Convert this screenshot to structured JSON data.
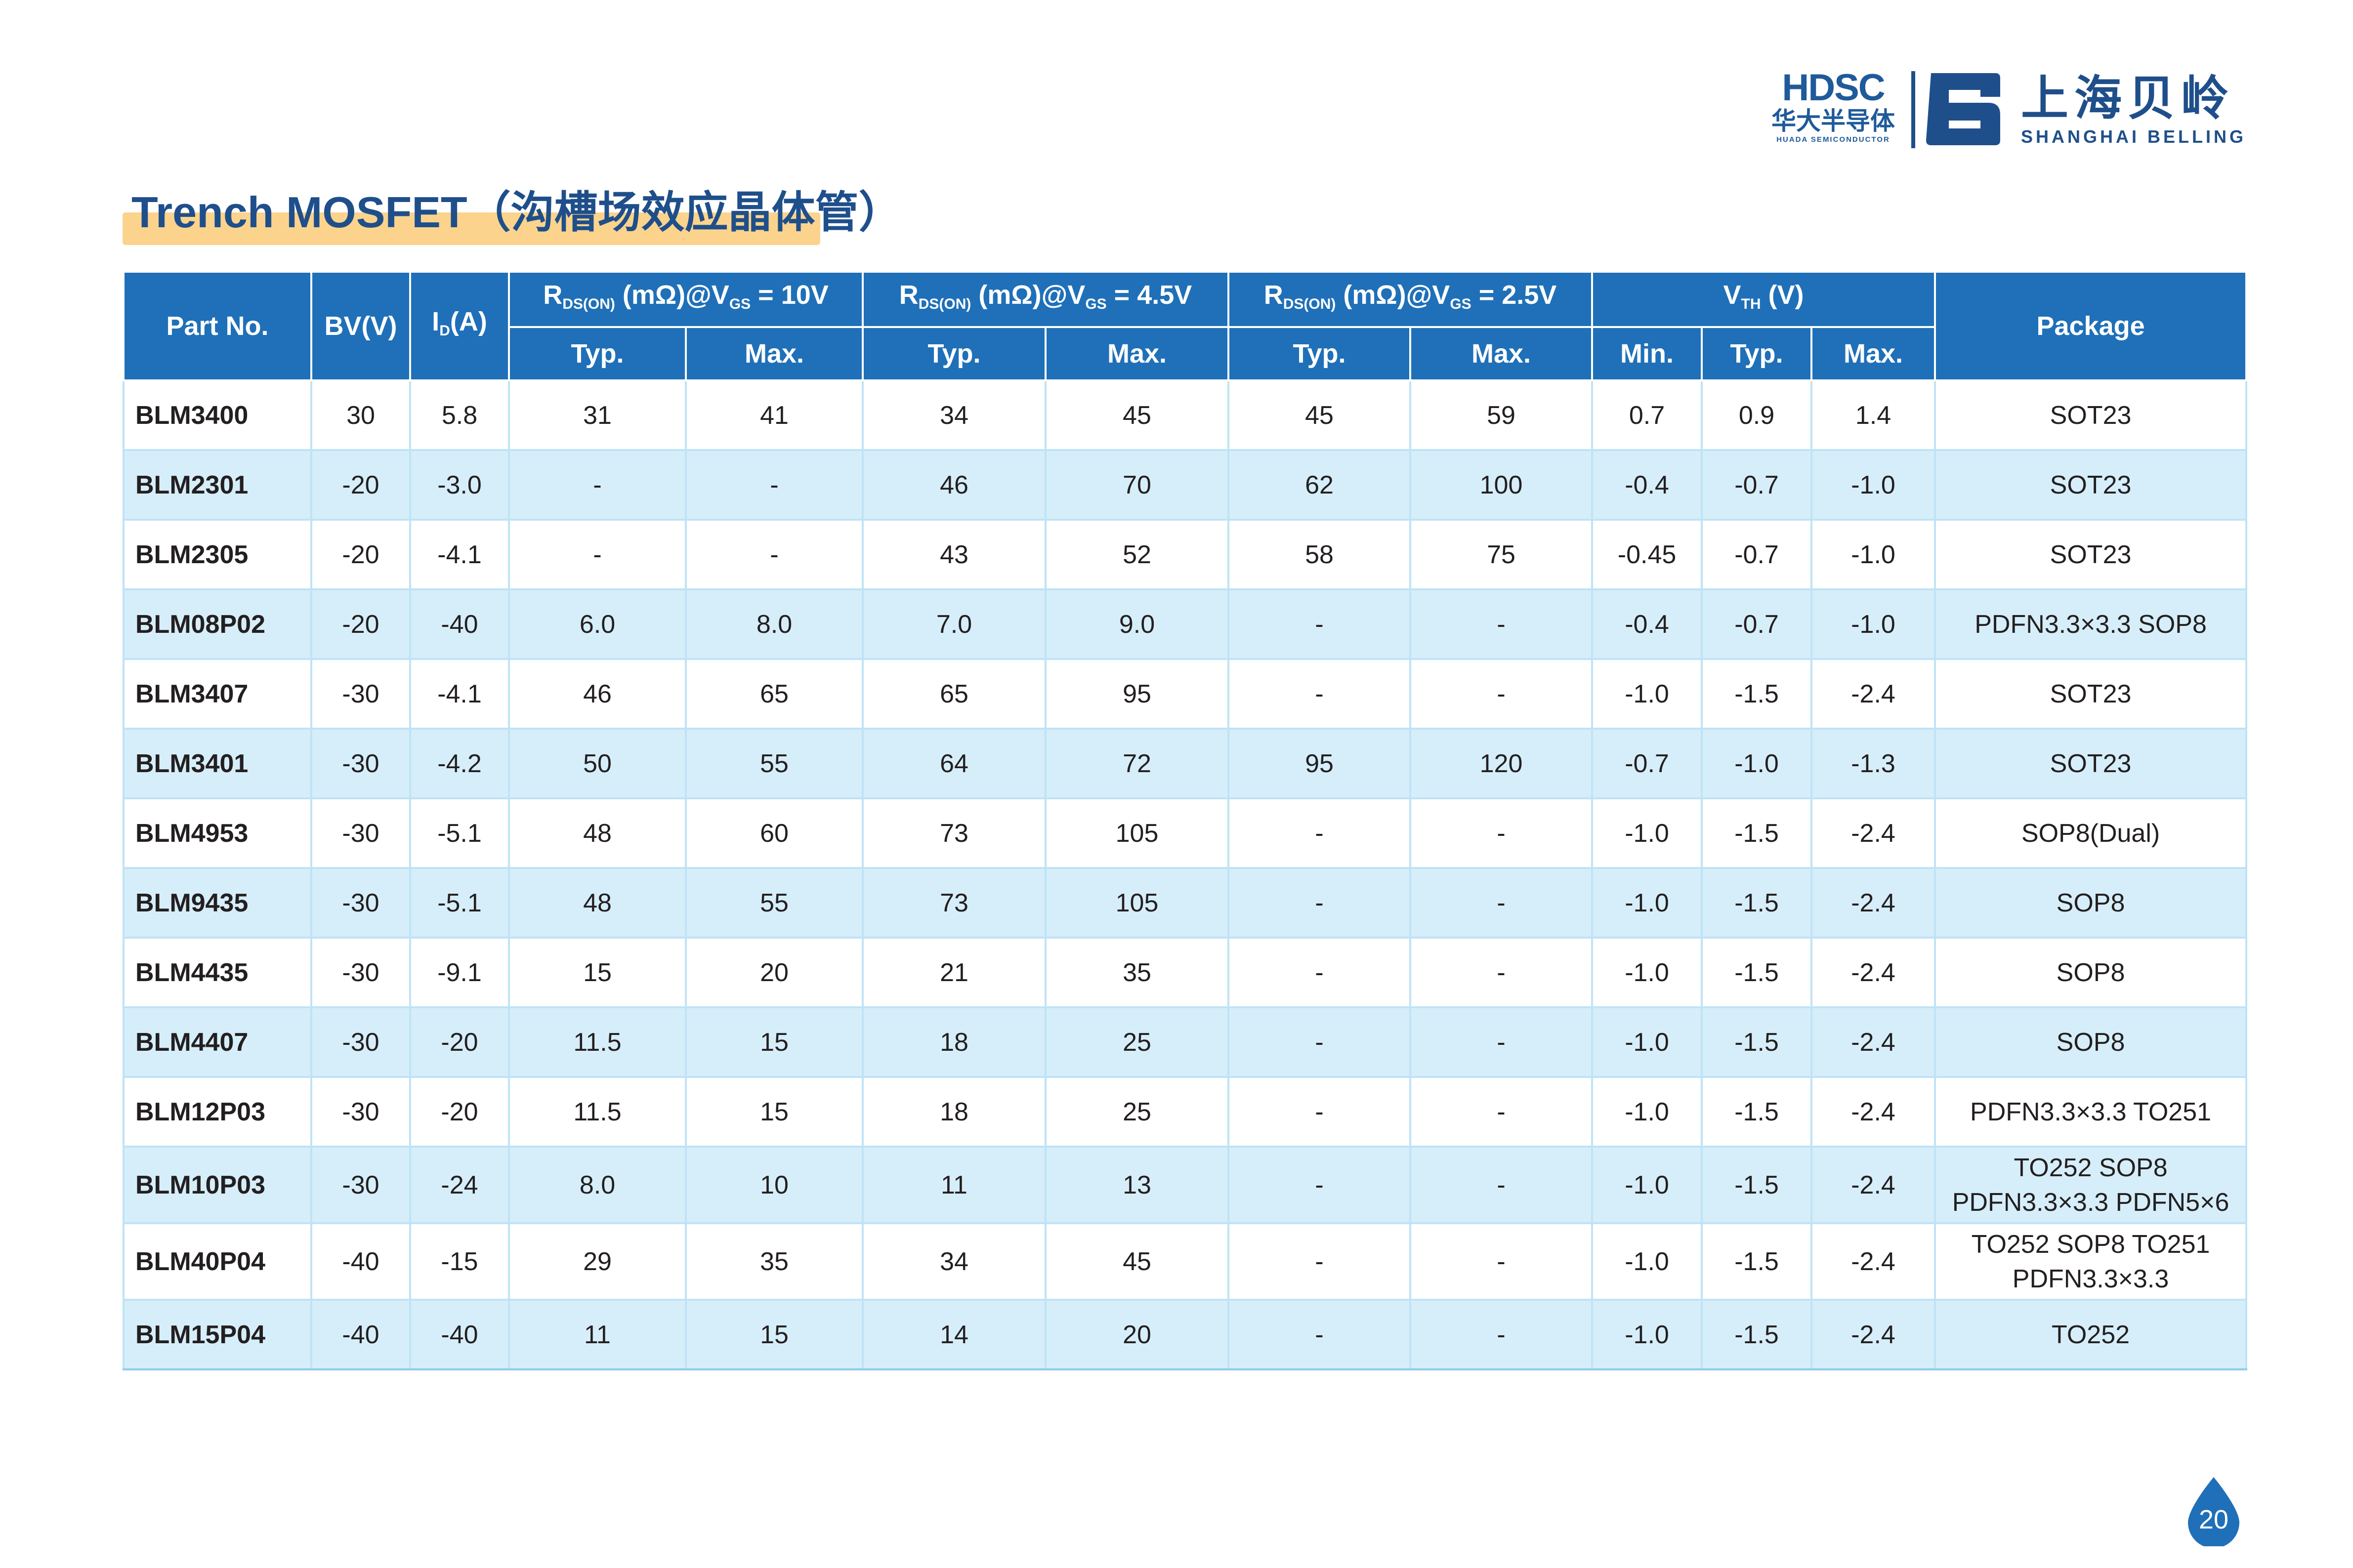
{
  "logos": {
    "hdsc_mark": "HDSC",
    "hdsc_cn": "华大半导体",
    "hdsc_en": "HUADA SEMICONDUCTOR",
    "belling_cn": "上海贝岭",
    "belling_en": "SHANGHAI BELLING"
  },
  "title": "Trench MOSFET（沟槽场效应晶体管）",
  "colors": {
    "header_bg": "#1f70b8",
    "row_alt_bg": "#d6eefa",
    "title_color": "#1f4f8b",
    "title_highlight": "#fbd38d"
  },
  "table": {
    "headers": {
      "part_no": "Part No.",
      "bv": "BV(V)",
      "id_main": "I",
      "id_sub": "D",
      "id_unit": "(A)",
      "rds_sym": "R",
      "rds_sub": "DS(ON)",
      "rds_unit": " (mΩ)@V",
      "vgs_sub": "GS",
      "rds_10_cond": " = 10V",
      "rds_45_cond": " = 4.5V",
      "rds_25_cond": " = 2.5V",
      "vth_main": "V",
      "vth_sub": "TH",
      "vth_unit": " (V)",
      "package": "Package",
      "typ": "Typ.",
      "max": "Max.",
      "min": "Min."
    },
    "rows": [
      {
        "part": "BLM3400",
        "bv": "30",
        "id": "5.8",
        "r10_typ": "31",
        "r10_max": "41",
        "r45_typ": "34",
        "r45_max": "45",
        "r25_typ": "45",
        "r25_max": "59",
        "vth_min": "0.7",
        "vth_typ": "0.9",
        "vth_max": "1.4",
        "package": "SOT23"
      },
      {
        "part": "BLM2301",
        "bv": "-20",
        "id": "-3.0",
        "r10_typ": "-",
        "r10_max": "-",
        "r45_typ": "46",
        "r45_max": "70",
        "r25_typ": "62",
        "r25_max": "100",
        "vth_min": "-0.4",
        "vth_typ": "-0.7",
        "vth_max": "-1.0",
        "package": "SOT23"
      },
      {
        "part": "BLM2305",
        "bv": "-20",
        "id": "-4.1",
        "r10_typ": "-",
        "r10_max": "-",
        "r45_typ": "43",
        "r45_max": "52",
        "r25_typ": "58",
        "r25_max": "75",
        "vth_min": "-0.45",
        "vth_typ": "-0.7",
        "vth_max": "-1.0",
        "package": "SOT23"
      },
      {
        "part": "BLM08P02",
        "bv": "-20",
        "id": "-40",
        "r10_typ": "6.0",
        "r10_max": "8.0",
        "r45_typ": "7.0",
        "r45_max": "9.0",
        "r25_typ": "-",
        "r25_max": "-",
        "vth_min": "-0.4",
        "vth_typ": "-0.7",
        "vth_max": "-1.0",
        "package": "PDFN3.3×3.3 SOP8"
      },
      {
        "part": "BLM3407",
        "bv": "-30",
        "id": "-4.1",
        "r10_typ": "46",
        "r10_max": "65",
        "r45_typ": "65",
        "r45_max": "95",
        "r25_typ": "-",
        "r25_max": "-",
        "vth_min": "-1.0",
        "vth_typ": "-1.5",
        "vth_max": "-2.4",
        "package": "SOT23"
      },
      {
        "part": "BLM3401",
        "bv": "-30",
        "id": "-4.2",
        "r10_typ": "50",
        "r10_max": "55",
        "r45_typ": "64",
        "r45_max": "72",
        "r25_typ": "95",
        "r25_max": "120",
        "vth_min": "-0.7",
        "vth_typ": "-1.0",
        "vth_max": "-1.3",
        "package": "SOT23"
      },
      {
        "part": "BLM4953",
        "bv": "-30",
        "id": "-5.1",
        "r10_typ": "48",
        "r10_max": "60",
        "r45_typ": "73",
        "r45_max": "105",
        "r25_typ": "-",
        "r25_max": "-",
        "vth_min": "-1.0",
        "vth_typ": "-1.5",
        "vth_max": "-2.4",
        "package": "SOP8(Dual)"
      },
      {
        "part": "BLM9435",
        "bv": "-30",
        "id": "-5.1",
        "r10_typ": "48",
        "r10_max": "55",
        "r45_typ": "73",
        "r45_max": "105",
        "r25_typ": "-",
        "r25_max": "-",
        "vth_min": "-1.0",
        "vth_typ": "-1.5",
        "vth_max": "-2.4",
        "package": "SOP8"
      },
      {
        "part": "BLM4435",
        "bv": "-30",
        "id": "-9.1",
        "r10_typ": "15",
        "r10_max": "20",
        "r45_typ": "21",
        "r45_max": "35",
        "r25_typ": "-",
        "r25_max": "-",
        "vth_min": "-1.0",
        "vth_typ": "-1.5",
        "vth_max": "-2.4",
        "package": "SOP8"
      },
      {
        "part": "BLM4407",
        "bv": "-30",
        "id": "-20",
        "r10_typ": "11.5",
        "r10_max": "15",
        "r45_typ": "18",
        "r45_max": "25",
        "r25_typ": "-",
        "r25_max": "-",
        "vth_min": "-1.0",
        "vth_typ": "-1.5",
        "vth_max": "-2.4",
        "package": "SOP8"
      },
      {
        "part": "BLM12P03",
        "bv": "-30",
        "id": "-20",
        "r10_typ": "11.5",
        "r10_max": "15",
        "r45_typ": "18",
        "r45_max": "25",
        "r25_typ": "-",
        "r25_max": "-",
        "vth_min": "-1.0",
        "vth_typ": "-1.5",
        "vth_max": "-2.4",
        "package": "PDFN3.3×3.3 TO251"
      },
      {
        "part": "BLM10P03",
        "bv": "-30",
        "id": "-24",
        "r10_typ": "8.0",
        "r10_max": "10",
        "r45_typ": "11",
        "r45_max": "13",
        "r25_typ": "-",
        "r25_max": "-",
        "vth_min": "-1.0",
        "vth_typ": "-1.5",
        "vth_max": "-2.4",
        "package_line1": "TO252 SOP8",
        "package_line2": "PDFN3.3×3.3 PDFN5×6"
      },
      {
        "part": "BLM40P04",
        "bv": "-40",
        "id": "-15",
        "r10_typ": "29",
        "r10_max": "35",
        "r45_typ": "34",
        "r45_max": "45",
        "r25_typ": "-",
        "r25_max": "-",
        "vth_min": "-1.0",
        "vth_typ": "-1.5",
        "vth_max": "-2.4",
        "package_line1": "TO252 SOP8 TO251",
        "package_line2": "PDFN3.3×3.3"
      },
      {
        "part": "BLM15P04",
        "bv": "-40",
        "id": "-40",
        "r10_typ": "11",
        "r10_max": "15",
        "r45_typ": "14",
        "r45_max": "20",
        "r25_typ": "-",
        "r25_max": "-",
        "vth_min": "-1.0",
        "vth_typ": "-1.5",
        "vth_max": "-2.4",
        "package": "TO252"
      }
    ]
  },
  "page_number": "20"
}
